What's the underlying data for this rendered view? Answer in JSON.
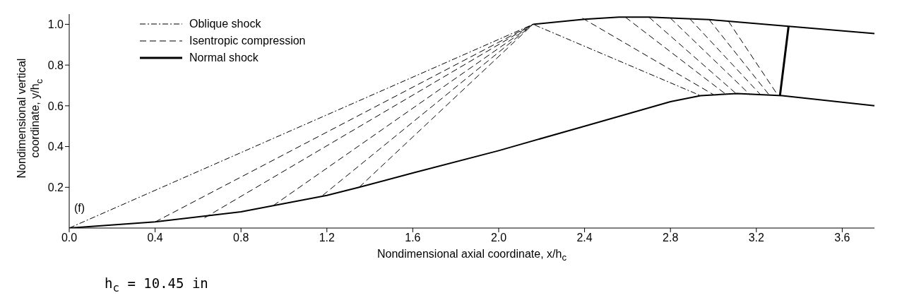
{
  "chart_data": {
    "type": "line",
    "xlabel": "Nondimensional axial coordinate, x/h$_{c}$",
    "ylabel": "Nondimensional vertical\ncoordinate, y/h$_{c}$",
    "annotations": [
      "(f)",
      "h$_{c}$ = 10.45 in"
    ],
    "xlim": [
      0,
      3.75
    ],
    "xticks": [
      {
        "value": 0,
        "label": "0.0"
      },
      0.4,
      0.8,
      1.2,
      1.6,
      {
        "value": 2,
        "label": "2.0"
      },
      2.4,
      2.8,
      3.2,
      3.6
    ],
    "ylim": [
      0,
      1.05
    ],
    "yticks": [
      0.2,
      0.4,
      0.6,
      0.8,
      {
        "value": 1,
        "label": "1.0"
      }
    ],
    "legend": "top left",
    "marker": "none",
    "series": [
      {
        "color": "#000000",
        "line_style": "solid",
        "x": [
          0,
          0.4,
          0.8,
          1.2,
          1.35,
          1.6,
          2.0,
          2.4,
          2.8,
          2.94,
          3.11,
          3.32,
          3.75
        ],
        "values": [
          0,
          0.03,
          0.08,
          0.16,
          0.2,
          0.27,
          0.38,
          0.5,
          0.62,
          0.65,
          0.66,
          0.65,
          0.6
        ]
      },
      {
        "color": "#000000",
        "line_style": "solid",
        "x": [
          2.16,
          2.4,
          2.56,
          2.7,
          2.98,
          3.35,
          3.75
        ],
        "values": [
          1.0,
          1.025,
          1.035,
          1.035,
          1.023,
          0.99,
          0.955
        ]
      },
      {
        "name": "Oblique shock",
        "color": "#000000",
        "line_style": "dotted",
        "x": [
          0,
          2.16,
          2.94
        ],
        "values": [
          0,
          1.0,
          0.65
        ]
      },
      {
        "name": "Isentropic compression",
        "color": "#000000",
        "line_style": "dashed",
        "x": [
          0.4,
          2.16
        ],
        "values": [
          0.03,
          1.0
        ]
      },
      {
        "color": "#000000",
        "line_style": "dashed",
        "x": [
          0.63,
          2.16
        ],
        "values": [
          0.05,
          1.0
        ]
      },
      {
        "color": "#000000",
        "line_style": "dashed",
        "x": [
          0.95,
          2.16
        ],
        "values": [
          0.11,
          1.0
        ]
      },
      {
        "color": "#000000",
        "line_style": "dashed",
        "x": [
          1.18,
          2.16
        ],
        "values": [
          0.16,
          1.0
        ]
      },
      {
        "color": "#000000",
        "line_style": "dashed",
        "x": [
          1.35,
          2.16
        ],
        "values": [
          0.2,
          1.0
        ]
      },
      {
        "color": "#000000",
        "line_style": "dashed",
        "x": [
          2.39,
          3.0
        ],
        "values": [
          1.03,
          0.655
        ]
      },
      {
        "color": "#000000",
        "line_style": "dashed",
        "x": [
          2.59,
          3.06
        ],
        "values": [
          1.035,
          0.655
        ]
      },
      {
        "color": "#000000",
        "line_style": "dashed",
        "x": [
          2.7,
          3.11
        ],
        "values": [
          1.035,
          0.656
        ]
      },
      {
        "color": "#000000",
        "line_style": "dashed",
        "x": [
          2.8,
          3.17
        ],
        "values": [
          1.03,
          0.655
        ]
      },
      {
        "color": "#000000",
        "line_style": "dashed",
        "x": [
          2.89,
          3.22
        ],
        "values": [
          1.027,
          0.654
        ]
      },
      {
        "color": "#000000",
        "line_style": "dashed",
        "x": [
          2.98,
          3.26
        ],
        "values": [
          1.023,
          0.653
        ]
      },
      {
        "color": "#000000",
        "line_style": "dashed",
        "x": [
          3.07,
          3.3
        ],
        "values": [
          1.015,
          0.652
        ]
      },
      {
        "name": "Normal shock",
        "color": "#000000",
        "line_style": "solid",
        "x": [
          3.35,
          3.33,
          3.31
        ],
        "values": [
          0.99,
          0.82,
          0.65
        ]
      }
    ]
  }
}
